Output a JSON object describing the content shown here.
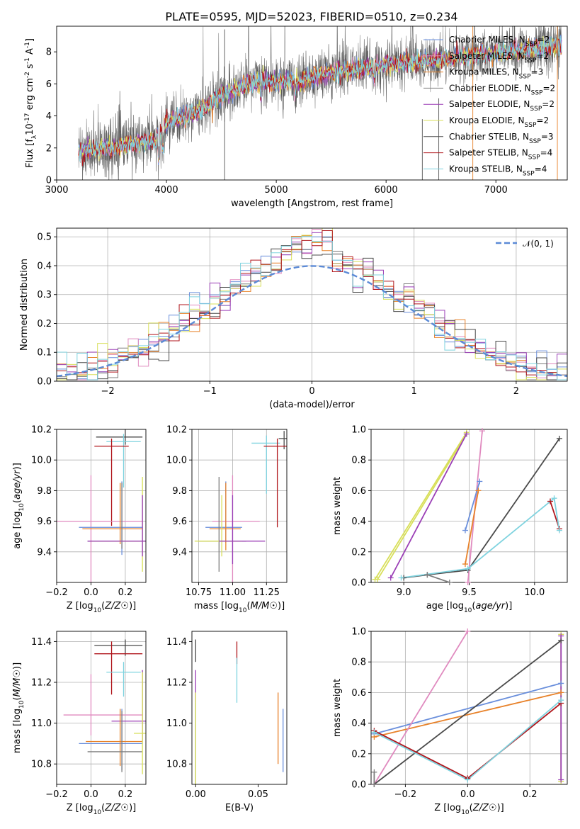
{
  "figure": {
    "title": "PLATE=0595, MJD=52023, FIBERID=0510, z=0.234",
    "colors": {
      "Chabrier MILES": "#6a8fdc",
      "Salpeter MILES": "#e08abf",
      "Kroupa MILES": "#e8822a",
      "Chabrier ELODIE": "#7d7d7d",
      "Salpeter ELODIE": "#9b3fb6",
      "Kroupa ELODIE": "#d8df5a",
      "Chabrier STELIB": "#4a4a4a",
      "Salpeter STELIB": "#b0161c",
      "Kroupa STELIB": "#7fd3df"
    },
    "models": [
      "Chabrier MILES",
      "Salpeter MILES",
      "Kroupa MILES",
      "Chabrier ELODIE",
      "Salpeter ELODIE",
      "Kroupa ELODIE",
      "Chabrier STELIB",
      "Salpeter STELIB",
      "Kroupa STELIB"
    ],
    "nssp": [
      2,
      2,
      3,
      2,
      2,
      2,
      3,
      4,
      4
    ]
  },
  "chart_data": [
    {
      "id": "spectrum",
      "type": "line",
      "xlabel": "wavelength [Angstrom, rest frame]",
      "ylabel_parts": [
        "Flux [f",
        "λ",
        "10",
        "-17",
        " erg cm",
        "-2",
        " s",
        "-1",
        " A",
        "-1",
        "]"
      ],
      "xlim": [
        3000,
        7650
      ],
      "ylim": [
        0,
        9.6
      ],
      "xticks": [
        3000,
        4000,
        5000,
        6000,
        7000
      ],
      "xtick_labels": [
        "3000",
        "4000",
        "5000",
        "6000",
        "7000"
      ],
      "yticks": [
        0,
        2,
        4,
        6,
        8
      ],
      "ytick_labels": [
        "0",
        "2",
        "4",
        "6",
        "8"
      ],
      "legend_position": "right",
      "legend_entries": [
        "Chabrier MILES, N_SSP=2",
        "Salpeter MILES, N_SSP=2",
        "Kroupa MILES, N_SSP=3",
        "Chabrier ELODIE, N_SSP=2",
        "Salpeter ELODIE, N_SSP=2",
        "Kroupa ELODIE, N_SSP=2",
        "Chabrier STELIB, N_SSP=3",
        "Salpeter STELIB, N_SSP=4",
        "Kroupa STELIB, N_SSP=4"
      ],
      "x_start": 3200,
      "x_end": 7600,
      "continuum_x": [
        3200,
        3500,
        3700,
        3900,
        4000,
        4300,
        4500,
        4800,
        5000,
        5200,
        5500,
        5800,
        6000,
        6300,
        6600,
        6800,
        7000,
        7300,
        7600
      ],
      "continuum_y": [
        1.8,
        2.0,
        2.3,
        2.4,
        3.5,
        4.3,
        5.3,
        6.1,
        6.1,
        6.2,
        6.7,
        7.0,
        7.2,
        7.4,
        7.6,
        7.8,
        7.9,
        8.2,
        8.4
      ]
    },
    {
      "id": "residuals",
      "type": "histogram",
      "xlabel": "(data-model)/error",
      "ylabel": "Normed distribution",
      "xlim": [
        -2.5,
        2.5
      ],
      "ylim": [
        0,
        0.53
      ],
      "xticks": [
        -2,
        -1,
        0,
        1,
        2
      ],
      "xtick_labels": [
        "−2",
        "−1",
        "0",
        "1",
        "2"
      ],
      "yticks": [
        0,
        0.1,
        0.2,
        0.3,
        0.4,
        0.5
      ],
      "ytick_labels": [
        "0.0",
        "0.1",
        "0.2",
        "0.3",
        "0.4",
        "0.5"
      ],
      "grid": true,
      "legend_label": "𝒩(0, 1)",
      "legend_position": "top-right",
      "bin_width": 0.1
    },
    {
      "id": "age_vs_Z",
      "type": "errorbar",
      "xlabel": "Z [log10(Z/Z☉)]",
      "ylabel": "age  [log10(age/yr)]",
      "xlim": [
        -0.2,
        0.32
      ],
      "ylim": [
        9.2,
        10.2
      ],
      "xticks": [
        -0.2,
        0.0,
        0.2
      ],
      "xtick_labels": [
        "−0.2",
        "0.0",
        "0.2"
      ],
      "yticks": [
        9.4,
        9.6,
        9.8,
        10.0,
        10.2
      ],
      "ytick_labels": [
        "9.4",
        "9.6",
        "9.8",
        "10.0",
        "10.2"
      ],
      "grid": true
    },
    {
      "id": "age_vs_mass",
      "type": "errorbar",
      "xlabel": "mass [log10(M/M☉)]",
      "ylabel": "",
      "xlim": [
        10.7,
        11.4
      ],
      "ylim": [
        9.2,
        10.2
      ],
      "xticks": [
        10.75,
        11.0,
        11.25
      ],
      "xtick_labels": [
        "10.75",
        "11.00",
        "11.25"
      ],
      "yticks": [
        9.4,
        9.6,
        9.8,
        10.0,
        10.2
      ],
      "ytick_labels": [
        "9.4",
        "9.6",
        "9.8",
        "10.0",
        "10.2"
      ],
      "grid": true
    },
    {
      "id": "weight_vs_age",
      "type": "line",
      "xlabel": "age  [log10(age/yr)]",
      "ylabel": "mass weight",
      "xlim": [
        8.75,
        10.25
      ],
      "ylim": [
        0,
        1
      ],
      "xticks": [
        9.0,
        9.5,
        10.0
      ],
      "xtick_labels": [
        "9.0",
        "9.5",
        "10.0"
      ],
      "yticks": [
        0,
        0.2,
        0.4,
        0.6,
        0.8,
        1.0
      ],
      "ytick_labels": [
        "0.0",
        "0.2",
        "0.4",
        "0.6",
        "0.8",
        "1.0"
      ],
      "grid": true,
      "series": [
        {
          "model": "Kroupa ELODIE",
          "x": [
            8.78,
            9.48
          ],
          "y": [
            0.02,
            0.98
          ]
        },
        {
          "model": "Kroupa ELODIE",
          "x": [
            8.8,
            9.48
          ],
          "y": [
            0.02,
            0.97
          ]
        },
        {
          "model": "Salpeter ELODIE",
          "x": [
            8.9,
            9.48
          ],
          "y": [
            0.03,
            0.97
          ]
        },
        {
          "model": "Salpeter MILES",
          "x": [
            9.49,
            9.6
          ],
          "y": [
            0.0,
            0.99
          ]
        },
        {
          "model": "Chabrier MILES",
          "x": [
            9.47,
            9.58
          ],
          "y": [
            0.34,
            0.66
          ]
        },
        {
          "model": "Kroupa MILES",
          "x": [
            9.47,
            9.57
          ],
          "y": [
            0.12,
            0.6
          ]
        },
        {
          "model": "Chabrier STELIB",
          "x": [
            9.0,
            9.18,
            9.49,
            10.19
          ],
          "y": [
            0.03,
            0.05,
            0.08,
            0.94
          ]
        },
        {
          "model": "Chabrier ELODIE",
          "x": [
            9.18,
            9.35
          ],
          "y": [
            0.05,
            0.0
          ]
        },
        {
          "model": "Salpeter STELIB",
          "x": [
            10.12,
            10.19
          ],
          "y": [
            0.53,
            0.35
          ]
        },
        {
          "model": "Kroupa STELIB",
          "x": [
            8.98,
            9.49,
            10.15,
            10.19
          ],
          "y": [
            0.03,
            0.09,
            0.55,
            0.34
          ]
        }
      ]
    },
    {
      "id": "mass_vs_Z",
      "type": "errorbar",
      "xlabel": "Z [log10(Z/Z☉)]",
      "ylabel": "mass [log10(M/M☉)]",
      "xlim": [
        -0.2,
        0.32
      ],
      "ylim": [
        10.7,
        11.45
      ],
      "xticks": [
        -0.2,
        0.0,
        0.2
      ],
      "xtick_labels": [
        "−0.2",
        "0.0",
        "0.2"
      ],
      "yticks": [
        10.8,
        11.0,
        11.2,
        11.4
      ],
      "ytick_labels": [
        "10.8",
        "11.0",
        "11.2",
        "11.4"
      ],
      "grid": true
    },
    {
      "id": "mass_vs_EBV",
      "type": "errorbar",
      "xlabel": "E(B-V)",
      "ylabel": "",
      "xlim": [
        -0.003,
        0.073
      ],
      "ylim": [
        10.7,
        11.45
      ],
      "xticks": [
        0.0,
        0.05
      ],
      "xtick_labels": [
        "0.00",
        "0.05"
      ],
      "yticks": [
        10.8,
        11.0,
        11.2,
        11.4
      ],
      "ytick_labels": [
        "10.8",
        "11.0",
        "11.2",
        "11.4"
      ],
      "grid": false
    },
    {
      "id": "weight_vs_Z",
      "type": "line",
      "xlabel": "Z [log10(Z/Z☉)]",
      "ylabel": "mass weight",
      "xlim": [
        -0.31,
        0.32
      ],
      "ylim": [
        0,
        1
      ],
      "xticks": [
        -0.2,
        0.0,
        0.2
      ],
      "xtick_labels": [
        "−0.2",
        "0.0",
        "0.2"
      ],
      "yticks": [
        0,
        0.2,
        0.4,
        0.6,
        0.8,
        1.0
      ],
      "ytick_labels": [
        "0.0",
        "0.2",
        "0.4",
        "0.6",
        "0.8",
        "1.0"
      ],
      "grid": true,
      "series": [
        {
          "model": "Chabrier MILES",
          "x": [
            -0.3,
            0.3
          ],
          "y": [
            0.33,
            0.66
          ]
        },
        {
          "model": "Kroupa MILES",
          "x": [
            -0.3,
            0.3
          ],
          "y": [
            0.31,
            0.6
          ]
        },
        {
          "model": "Salpeter MILES",
          "x": [
            -0.3,
            0.0
          ],
          "y": [
            0.0,
            1.0
          ]
        },
        {
          "model": "Chabrier STELIB",
          "x": [
            -0.3,
            0.3
          ],
          "y": [
            0.0,
            0.94
          ]
        },
        {
          "model": "Salpeter STELIB",
          "x": [
            -0.3,
            0.0,
            0.3
          ],
          "y": [
            0.35,
            0.04,
            0.53
          ]
        },
        {
          "model": "Kroupa STELIB",
          "x": [
            -0.3,
            0.0,
            0.3
          ],
          "y": [
            0.34,
            0.03,
            0.55
          ]
        },
        {
          "model": "Kroupa ELODIE",
          "x": [
            0.3,
            0.3
          ],
          "y": [
            0.02,
            0.98
          ]
        },
        {
          "model": "Salpeter ELODIE",
          "x": [
            0.3,
            0.3
          ],
          "y": [
            0.03,
            0.97
          ]
        },
        {
          "model": "Chabrier ELODIE",
          "x": [
            -0.3,
            -0.3
          ],
          "y": [
            0.0,
            0.08
          ]
        }
      ]
    }
  ]
}
